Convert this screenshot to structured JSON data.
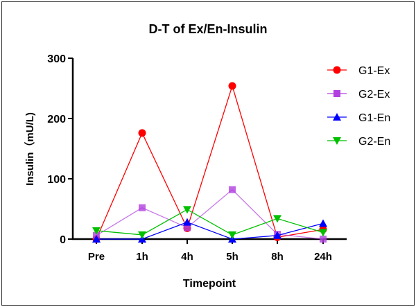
{
  "chart_data": {
    "type": "line",
    "title": "D-T of Ex/En-Insulin",
    "xlabel": "Timepoint",
    "ylabel": "Insulin（mU/L)",
    "categories": [
      "Pre",
      "1h",
      "4h",
      "5h",
      "8h",
      "24h"
    ],
    "ylim": [
      0,
      300
    ],
    "yticks": [
      0,
      100,
      200,
      300
    ],
    "grid": false,
    "legend_position": "top-right",
    "series": [
      {
        "name": "G1-Ex",
        "color": "#ff0000",
        "marker": "circle",
        "values": [
          0,
          176,
          18,
          254,
          3,
          16
        ]
      },
      {
        "name": "G2-Ex",
        "color": "#b040e0",
        "marker": "square",
        "values": [
          6,
          52,
          19,
          82,
          8,
          0
        ]
      },
      {
        "name": "G1-En",
        "color": "#0000ff",
        "marker": "triangle-up",
        "values": [
          0,
          0,
          28,
          0,
          6,
          26
        ]
      },
      {
        "name": "G2-En",
        "color": "#00c000",
        "marker": "triangle-down",
        "values": [
          14,
          7,
          49,
          7,
          34,
          11
        ]
      }
    ]
  }
}
